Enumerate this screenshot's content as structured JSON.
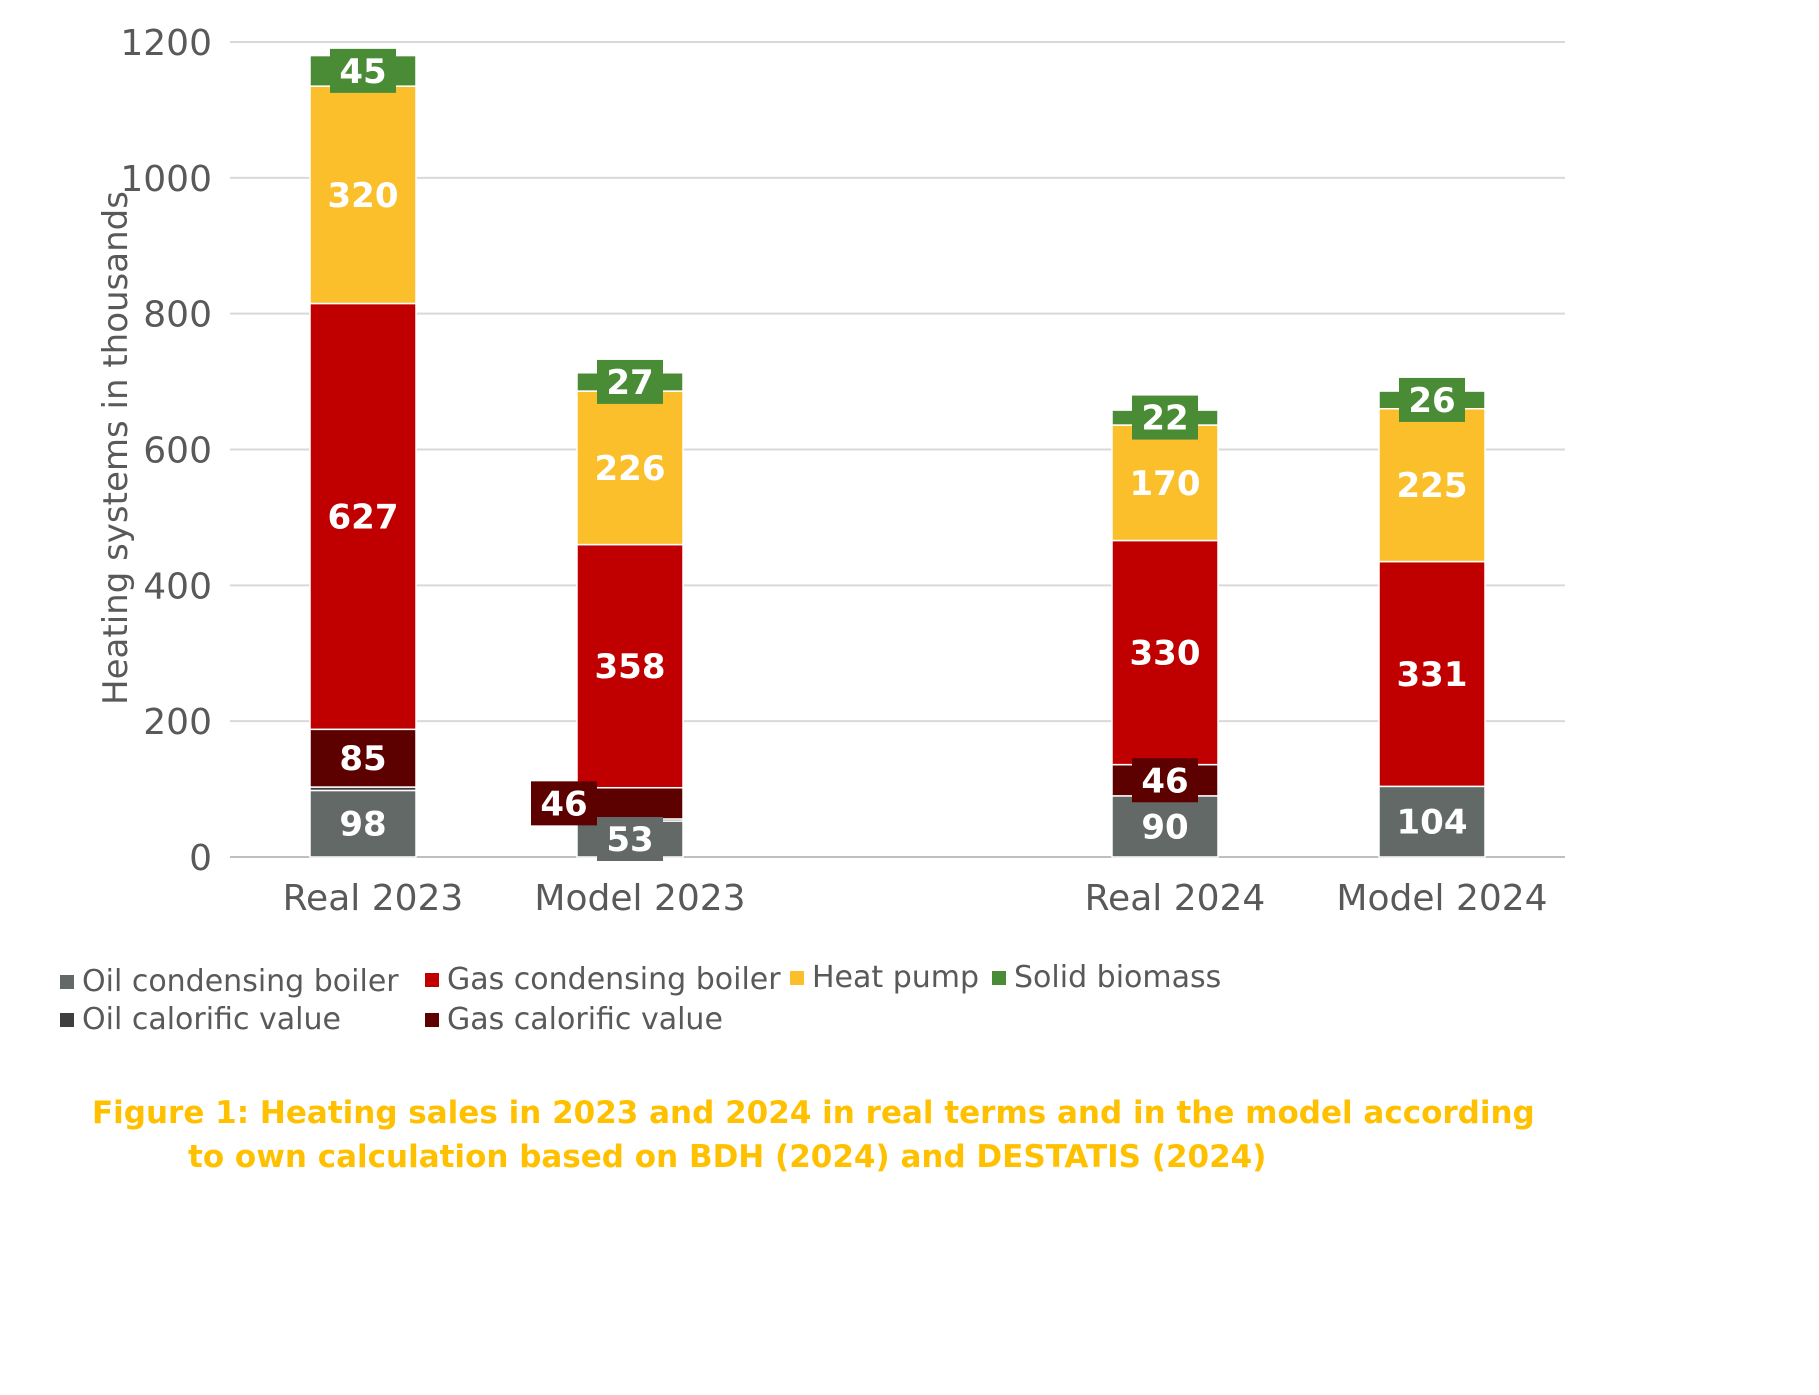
{
  "chart_data": {
    "type": "bar",
    "stacked": true,
    "categories": [
      "Real 2023",
      "Model 2023",
      "Real 2024",
      "Model 2024"
    ],
    "ylabel": "Heating systems in thousands",
    "ylim": [
      0,
      1200
    ],
    "yticks": [
      0,
      200,
      400,
      600,
      800,
      1000,
      1200
    ],
    "grid": true,
    "legend_position": "bottom",
    "series": [
      {
        "name": "Oil condensing boiler",
        "color": "#636966",
        "values": [
          98,
          53,
          90,
          104
        ]
      },
      {
        "name": "Oil calorific value",
        "color": "#3f3f3f",
        "values": [
          5,
          3,
          0,
          0
        ]
      },
      {
        "name": "Gas calorific value",
        "color": "#5c0000",
        "values": [
          85,
          46,
          46,
          0
        ]
      },
      {
        "name": "Gas condensing boiler",
        "color": "#c00000",
        "values": [
          627,
          358,
          330,
          331
        ]
      },
      {
        "name": "Heat pump",
        "color": "#fbbf2c",
        "values": [
          320,
          226,
          170,
          225
        ]
      },
      {
        "name": "Solid biomass",
        "color": "#4a8c35",
        "values": [
          45,
          27,
          22,
          26
        ]
      }
    ],
    "data_labels": [
      [
        "98",
        "",
        "85",
        "627",
        "320",
        "45"
      ],
      [
        "53",
        "",
        "46",
        "358",
        "226",
        "27"
      ],
      [
        "90",
        "",
        "46",
        "330",
        "170",
        "22"
      ],
      [
        "104",
        "",
        "",
        "331",
        "225",
        "26"
      ]
    ]
  },
  "legend": {
    "row1": [
      "Oil condensing boiler",
      "Gas condensing boiler",
      "Heat pump",
      "Solid biomass"
    ],
    "row2": [
      "Oil calorific value",
      "Gas calorific value"
    ]
  },
  "caption": {
    "line1": "Figure 1: Heating sales in 2023 and 2024 in real terms and in the model according",
    "line2": "to own calculation based on BDH (2024) and DESTATIS (2024)"
  }
}
